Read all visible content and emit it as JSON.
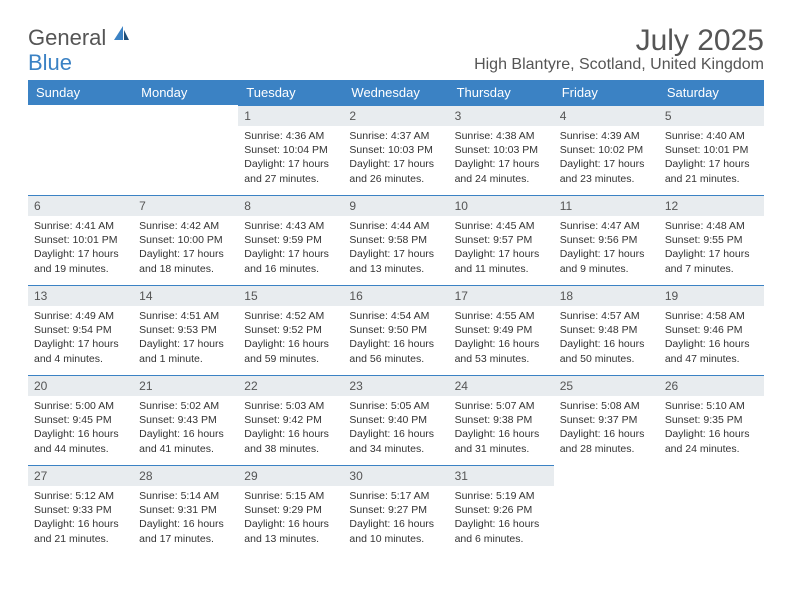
{
  "branding": {
    "textGeneral": "General",
    "textBlue": "Blue",
    "accentColor": "#3b82c4",
    "grayColor": "#555555"
  },
  "title": "July 2025",
  "location": "High Blantyre, Scotland, United Kingdom",
  "dayHeaders": [
    "Sunday",
    "Monday",
    "Tuesday",
    "Wednesday",
    "Thursday",
    "Friday",
    "Saturday"
  ],
  "headerBg": "#3b82c4",
  "dayBarBg": "#e8ecef",
  "weeks": [
    [
      {
        "n": "",
        "sr": "",
        "ss": "",
        "dl": ""
      },
      {
        "n": "",
        "sr": "",
        "ss": "",
        "dl": ""
      },
      {
        "n": "1",
        "sr": "Sunrise: 4:36 AM",
        "ss": "Sunset: 10:04 PM",
        "dl": "Daylight: 17 hours and 27 minutes."
      },
      {
        "n": "2",
        "sr": "Sunrise: 4:37 AM",
        "ss": "Sunset: 10:03 PM",
        "dl": "Daylight: 17 hours and 26 minutes."
      },
      {
        "n": "3",
        "sr": "Sunrise: 4:38 AM",
        "ss": "Sunset: 10:03 PM",
        "dl": "Daylight: 17 hours and 24 minutes."
      },
      {
        "n": "4",
        "sr": "Sunrise: 4:39 AM",
        "ss": "Sunset: 10:02 PM",
        "dl": "Daylight: 17 hours and 23 minutes."
      },
      {
        "n": "5",
        "sr": "Sunrise: 4:40 AM",
        "ss": "Sunset: 10:01 PM",
        "dl": "Daylight: 17 hours and 21 minutes."
      }
    ],
    [
      {
        "n": "6",
        "sr": "Sunrise: 4:41 AM",
        "ss": "Sunset: 10:01 PM",
        "dl": "Daylight: 17 hours and 19 minutes."
      },
      {
        "n": "7",
        "sr": "Sunrise: 4:42 AM",
        "ss": "Sunset: 10:00 PM",
        "dl": "Daylight: 17 hours and 18 minutes."
      },
      {
        "n": "8",
        "sr": "Sunrise: 4:43 AM",
        "ss": "Sunset: 9:59 PM",
        "dl": "Daylight: 17 hours and 16 minutes."
      },
      {
        "n": "9",
        "sr": "Sunrise: 4:44 AM",
        "ss": "Sunset: 9:58 PM",
        "dl": "Daylight: 17 hours and 13 minutes."
      },
      {
        "n": "10",
        "sr": "Sunrise: 4:45 AM",
        "ss": "Sunset: 9:57 PM",
        "dl": "Daylight: 17 hours and 11 minutes."
      },
      {
        "n": "11",
        "sr": "Sunrise: 4:47 AM",
        "ss": "Sunset: 9:56 PM",
        "dl": "Daylight: 17 hours and 9 minutes."
      },
      {
        "n": "12",
        "sr": "Sunrise: 4:48 AM",
        "ss": "Sunset: 9:55 PM",
        "dl": "Daylight: 17 hours and 7 minutes."
      }
    ],
    [
      {
        "n": "13",
        "sr": "Sunrise: 4:49 AM",
        "ss": "Sunset: 9:54 PM",
        "dl": "Daylight: 17 hours and 4 minutes."
      },
      {
        "n": "14",
        "sr": "Sunrise: 4:51 AM",
        "ss": "Sunset: 9:53 PM",
        "dl": "Daylight: 17 hours and 1 minute."
      },
      {
        "n": "15",
        "sr": "Sunrise: 4:52 AM",
        "ss": "Sunset: 9:52 PM",
        "dl": "Daylight: 16 hours and 59 minutes."
      },
      {
        "n": "16",
        "sr": "Sunrise: 4:54 AM",
        "ss": "Sunset: 9:50 PM",
        "dl": "Daylight: 16 hours and 56 minutes."
      },
      {
        "n": "17",
        "sr": "Sunrise: 4:55 AM",
        "ss": "Sunset: 9:49 PM",
        "dl": "Daylight: 16 hours and 53 minutes."
      },
      {
        "n": "18",
        "sr": "Sunrise: 4:57 AM",
        "ss": "Sunset: 9:48 PM",
        "dl": "Daylight: 16 hours and 50 minutes."
      },
      {
        "n": "19",
        "sr": "Sunrise: 4:58 AM",
        "ss": "Sunset: 9:46 PM",
        "dl": "Daylight: 16 hours and 47 minutes."
      }
    ],
    [
      {
        "n": "20",
        "sr": "Sunrise: 5:00 AM",
        "ss": "Sunset: 9:45 PM",
        "dl": "Daylight: 16 hours and 44 minutes."
      },
      {
        "n": "21",
        "sr": "Sunrise: 5:02 AM",
        "ss": "Sunset: 9:43 PM",
        "dl": "Daylight: 16 hours and 41 minutes."
      },
      {
        "n": "22",
        "sr": "Sunrise: 5:03 AM",
        "ss": "Sunset: 9:42 PM",
        "dl": "Daylight: 16 hours and 38 minutes."
      },
      {
        "n": "23",
        "sr": "Sunrise: 5:05 AM",
        "ss": "Sunset: 9:40 PM",
        "dl": "Daylight: 16 hours and 34 minutes."
      },
      {
        "n": "24",
        "sr": "Sunrise: 5:07 AM",
        "ss": "Sunset: 9:38 PM",
        "dl": "Daylight: 16 hours and 31 minutes."
      },
      {
        "n": "25",
        "sr": "Sunrise: 5:08 AM",
        "ss": "Sunset: 9:37 PM",
        "dl": "Daylight: 16 hours and 28 minutes."
      },
      {
        "n": "26",
        "sr": "Sunrise: 5:10 AM",
        "ss": "Sunset: 9:35 PM",
        "dl": "Daylight: 16 hours and 24 minutes."
      }
    ],
    [
      {
        "n": "27",
        "sr": "Sunrise: 5:12 AM",
        "ss": "Sunset: 9:33 PM",
        "dl": "Daylight: 16 hours and 21 minutes."
      },
      {
        "n": "28",
        "sr": "Sunrise: 5:14 AM",
        "ss": "Sunset: 9:31 PM",
        "dl": "Daylight: 16 hours and 17 minutes."
      },
      {
        "n": "29",
        "sr": "Sunrise: 5:15 AM",
        "ss": "Sunset: 9:29 PM",
        "dl": "Daylight: 16 hours and 13 minutes."
      },
      {
        "n": "30",
        "sr": "Sunrise: 5:17 AM",
        "ss": "Sunset: 9:27 PM",
        "dl": "Daylight: 16 hours and 10 minutes."
      },
      {
        "n": "31",
        "sr": "Sunrise: 5:19 AM",
        "ss": "Sunset: 9:26 PM",
        "dl": "Daylight: 16 hours and 6 minutes."
      },
      {
        "n": "",
        "sr": "",
        "ss": "",
        "dl": ""
      },
      {
        "n": "",
        "sr": "",
        "ss": "",
        "dl": ""
      }
    ]
  ]
}
